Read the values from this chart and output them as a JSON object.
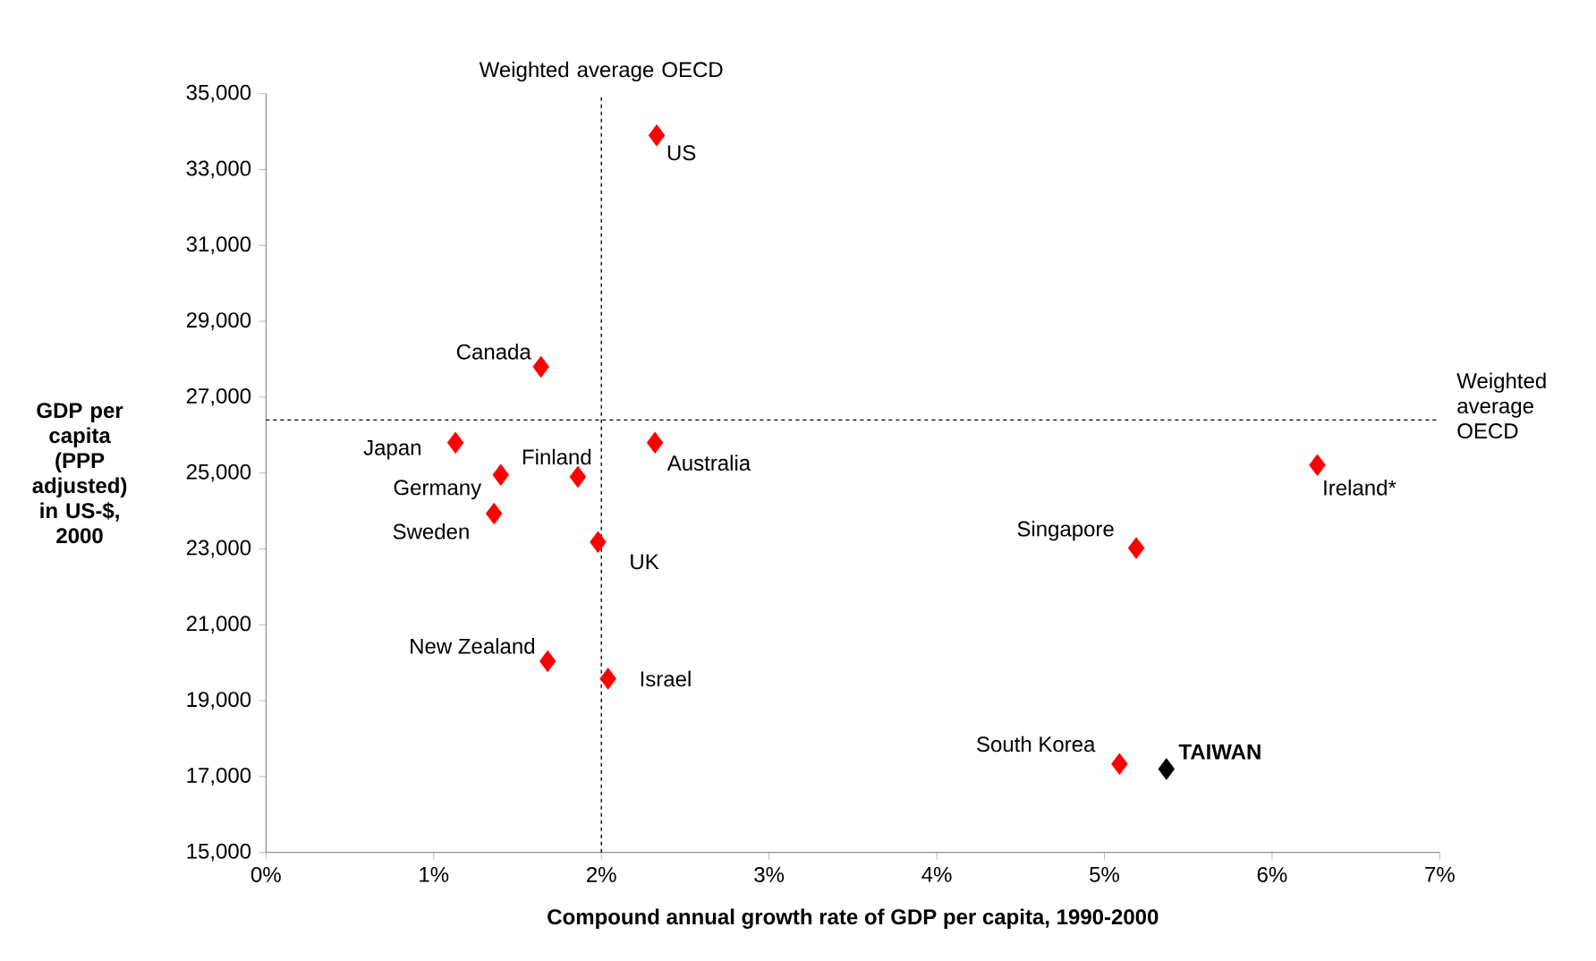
{
  "chart_data": {
    "type": "scatter",
    "xlabel": "Compound annual growth rate of GDP per capita, 1990-2000",
    "ylabel": "GDP per capita (PPP adjusted) in US-$, 2000",
    "marker": "diamond",
    "grid": false,
    "xlim": [
      0,
      7
    ],
    "ylim": [
      15000,
      35000
    ],
    "xticks": [
      {
        "value": 0,
        "label": "0%"
      },
      {
        "value": 1,
        "label": "1%"
      },
      {
        "value": 2,
        "label": "2%"
      },
      {
        "value": 3,
        "label": "3%"
      },
      {
        "value": 4,
        "label": "4%"
      },
      {
        "value": 5,
        "label": "5%"
      },
      {
        "value": 6,
        "label": "6%"
      },
      {
        "value": 7,
        "label": "7%"
      }
    ],
    "yticks": [
      {
        "value": 15000,
        "label": "15,000"
      },
      {
        "value": 17000,
        "label": "17,000"
      },
      {
        "value": 19000,
        "label": "19,000"
      },
      {
        "value": 21000,
        "label": "21,000"
      },
      {
        "value": 23000,
        "label": "23,000"
      },
      {
        "value": 25000,
        "label": "25,000"
      },
      {
        "value": 27000,
        "label": "27,000"
      },
      {
        "value": 29000,
        "label": "29,000"
      },
      {
        "value": 31000,
        "label": "31,000"
      },
      {
        "value": 33000,
        "label": "33,000"
      },
      {
        "value": 35000,
        "label": "35,000"
      }
    ],
    "series": [
      {
        "color": "#ff0000",
        "x": [
          2.33,
          1.64,
          1.13,
          1.4,
          1.86,
          2.32,
          1.36,
          1.98,
          1.68,
          2.04,
          6.27,
          5.19,
          5.09
        ],
        "values": [
          33900,
          27800,
          25800,
          24950,
          24900,
          25800,
          23930,
          23180,
          20040,
          19580,
          25210,
          23020,
          17330
        ]
      },
      {
        "name": "TAIWAN",
        "color": "#000000",
        "x": [
          5.37
        ],
        "values": [
          17200
        ]
      }
    ],
    "annotations": [
      {
        "text": "US",
        "x": 2.33,
        "y": 33900
      },
      {
        "text": "Canada",
        "x": 1.64,
        "y": 27800
      },
      {
        "text": "Japan",
        "x": 1.13,
        "y": 25800
      },
      {
        "text": "Germany",
        "x": 1.4,
        "y": 24950
      },
      {
        "text": "Finland",
        "x": 1.86,
        "y": 24900
      },
      {
        "text": "Australia",
        "x": 2.32,
        "y": 25800
      },
      {
        "text": "Sweden",
        "x": 1.36,
        "y": 23930
      },
      {
        "text": "UK",
        "x": 1.98,
        "y": 23180
      },
      {
        "text": "New Zealand",
        "x": 1.68,
        "y": 20040
      },
      {
        "text": "Israel",
        "x": 2.04,
        "y": 19580
      },
      {
        "text": "Ireland*",
        "x": 6.27,
        "y": 25210
      },
      {
        "text": "Singapore",
        "x": 5.19,
        "y": 23020
      },
      {
        "text": "South Korea",
        "x": 5.09,
        "y": 17330
      }
    ],
    "ref_lines": [
      {
        "axis": "x",
        "value": 2,
        "label": "Weighted average OECD",
        "line_style": "dashed"
      },
      {
        "axis": "y",
        "value": 26400,
        "label": "Weighted average OECD",
        "line_style": "dashed"
      }
    ]
  }
}
